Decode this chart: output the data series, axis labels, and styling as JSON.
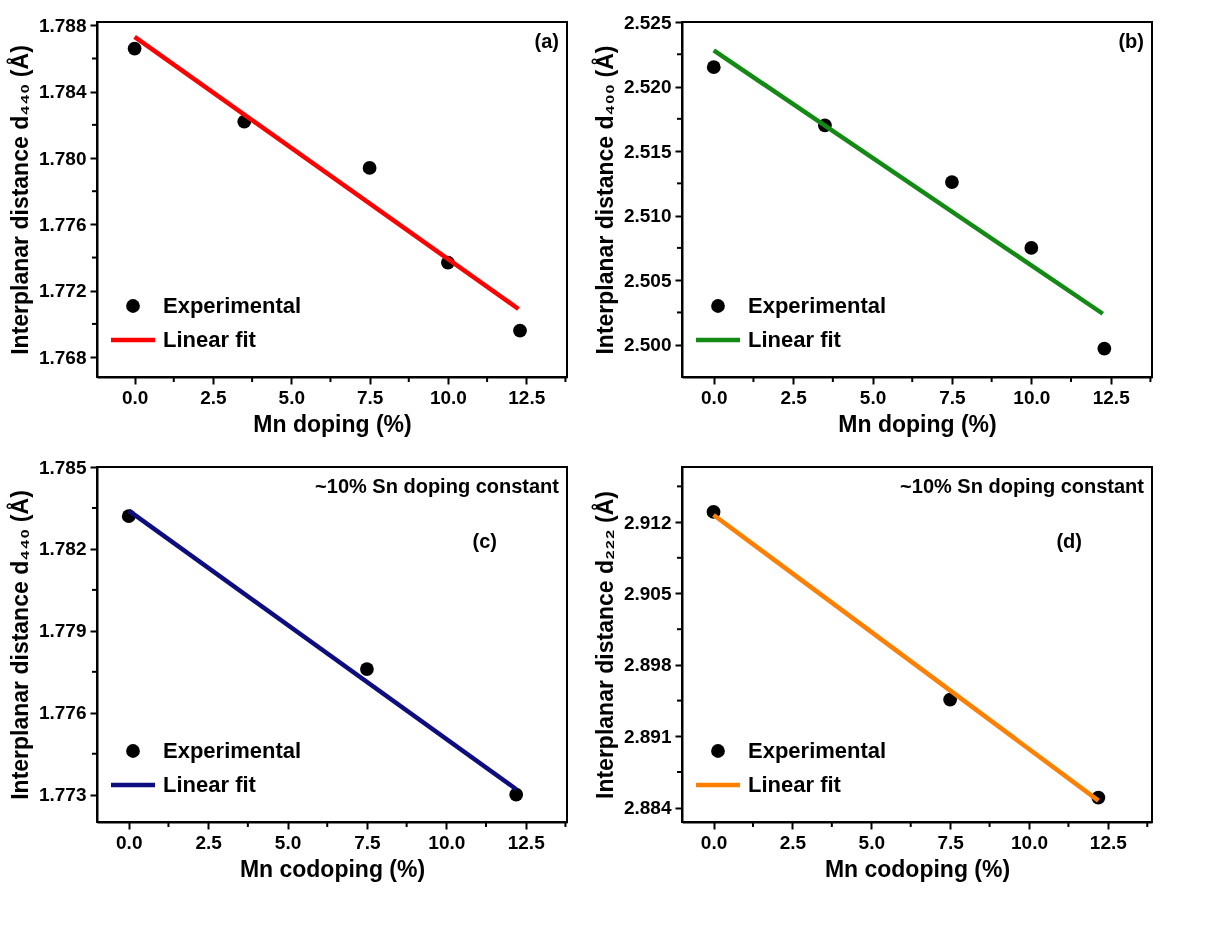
{
  "chart_data": [
    {
      "type": "scatter",
      "xlabel": "Mn doping (%)",
      "ylabel": "Interplanar distance d₄₄₀ (Å)",
      "annotations": [
        "(a)"
      ],
      "legend": "bottom left",
      "grid": false,
      "marker": "circle",
      "xlim": [
        -1.2,
        13.8
      ],
      "ylim": [
        1.7668,
        1.7882
      ],
      "xticks": [
        {
          "value": 0,
          "label": "0.0"
        },
        {
          "value": 1.25,
          "label": null
        },
        {
          "value": 2.5,
          "label": "2.5"
        },
        {
          "value": 3.75,
          "label": null
        },
        {
          "value": 5,
          "label": "5.0"
        },
        {
          "value": 6.25,
          "label": null
        },
        {
          "value": 7.5,
          "label": "7.5"
        },
        {
          "value": 8.75,
          "label": null
        },
        {
          "value": 10,
          "label": "10.0"
        },
        {
          "value": 11.25,
          "label": null
        },
        {
          "value": 12.5,
          "label": "12.5"
        },
        {
          "value": 13.75,
          "label": null
        }
      ],
      "yticks": [
        {
          "value": 1.768,
          "label": "1.768"
        },
        {
          "value": 1.77,
          "label": null
        },
        {
          "value": 1.772,
          "label": "1.772"
        },
        {
          "value": 1.774,
          "label": null
        },
        {
          "value": 1.776,
          "label": "1.776"
        },
        {
          "value": 1.778,
          "label": null
        },
        {
          "value": 1.78,
          "label": "1.780"
        },
        {
          "value": 1.782,
          "label": null
        },
        {
          "value": 1.784,
          "label": "1.784"
        },
        {
          "value": 1.786,
          "label": null
        },
        {
          "value": 1.788,
          "label": "1.788"
        }
      ],
      "series": [
        {
          "name": "Experimental",
          "type": "scatter",
          "color": "#000000",
          "x": [
            0,
            3.5,
            7.5,
            10,
            12.3
          ],
          "values": [
            1.7866,
            1.7822,
            1.7794,
            1.7737,
            1.7696
          ]
        },
        {
          "name": "Linear fit",
          "type": "line",
          "marker": "none",
          "color": "#ff0000",
          "x": [
            0,
            12.25
          ],
          "values": [
            1.7873,
            1.7709
          ]
        }
      ]
    },
    {
      "type": "scatter",
      "xlabel": "Mn doping (%)",
      "ylabel": "Interplanar distance d₄₀₀ (Å)",
      "annotations": [
        "(b)"
      ],
      "legend": "bottom left",
      "grid": false,
      "marker": "circle",
      "xlim": [
        -1.0,
        13.8
      ],
      "ylim": [
        2.4975,
        2.525
      ],
      "xticks": [
        {
          "value": 0,
          "label": "0.0"
        },
        {
          "value": 1.25,
          "label": null
        },
        {
          "value": 2.5,
          "label": "2.5"
        },
        {
          "value": 3.75,
          "label": null
        },
        {
          "value": 5,
          "label": "5.0"
        },
        {
          "value": 6.25,
          "label": null
        },
        {
          "value": 7.5,
          "label": "7.5"
        },
        {
          "value": 8.75,
          "label": null
        },
        {
          "value": 10,
          "label": "10.0"
        },
        {
          "value": 11.25,
          "label": null
        },
        {
          "value": 12.5,
          "label": "12.5"
        },
        {
          "value": 13.75,
          "label": null
        }
      ],
      "yticks": [
        {
          "value": 2.5,
          "label": "2.500"
        },
        {
          "value": 2.5025,
          "label": null
        },
        {
          "value": 2.505,
          "label": "2.505"
        },
        {
          "value": 2.5075,
          "label": null
        },
        {
          "value": 2.51,
          "label": "2.510"
        },
        {
          "value": 2.5125,
          "label": null
        },
        {
          "value": 2.515,
          "label": "2.515"
        },
        {
          "value": 2.5175,
          "label": null
        },
        {
          "value": 2.52,
          "label": "2.520"
        },
        {
          "value": 2.5225,
          "label": null
        },
        {
          "value": 2.525,
          "label": "2.525"
        }
      ],
      "series": [
        {
          "name": "Experimental",
          "type": "scatter",
          "color": "#000000",
          "x": [
            0,
            3.5,
            7.5,
            10,
            12.3
          ],
          "values": [
            2.5215,
            2.517,
            2.5126,
            2.5075,
            2.4997
          ]
        },
        {
          "name": "Linear fit",
          "type": "line",
          "marker": "none",
          "color": "#138a13",
          "x": [
            0,
            12.25
          ],
          "values": [
            2.5228,
            2.5024
          ]
        }
      ]
    },
    {
      "type": "scatter",
      "xlabel": "Mn codoping (%)",
      "ylabel": "Interplanar distance d₄₄₀ (Å)",
      "annotations": [
        "~10% Sn doping constant",
        "(c)"
      ],
      "legend": "bottom left",
      "grid": false,
      "marker": "circle",
      "xlim": [
        -1.0,
        13.8
      ],
      "ylim": [
        1.772,
        1.785
      ],
      "xticks": [
        {
          "value": 0,
          "label": "0.0"
        },
        {
          "value": 1.25,
          "label": null
        },
        {
          "value": 2.5,
          "label": "2.5"
        },
        {
          "value": 3.75,
          "label": null
        },
        {
          "value": 5,
          "label": "5.0"
        },
        {
          "value": 6.25,
          "label": null
        },
        {
          "value": 7.5,
          "label": "7.5"
        },
        {
          "value": 8.75,
          "label": null
        },
        {
          "value": 10,
          "label": "10.0"
        },
        {
          "value": 11.25,
          "label": null
        },
        {
          "value": 12.5,
          "label": "12.5"
        },
        {
          "value": 13.75,
          "label": null
        }
      ],
      "yticks": [
        {
          "value": 1.773,
          "label": "1.773"
        },
        {
          "value": 1.7745,
          "label": null
        },
        {
          "value": 1.776,
          "label": "1.776"
        },
        {
          "value": 1.7775,
          "label": null
        },
        {
          "value": 1.779,
          "label": "1.779"
        },
        {
          "value": 1.7805,
          "label": null
        },
        {
          "value": 1.782,
          "label": "1.782"
        },
        {
          "value": 1.7835,
          "label": null
        },
        {
          "value": 1.785,
          "label": "1.785"
        }
      ],
      "series": [
        {
          "name": "Experimental",
          "type": "scatter",
          "color": "#000000",
          "x": [
            0,
            7.5,
            12.2
          ],
          "values": [
            1.7832,
            1.7776,
            1.773
          ]
        },
        {
          "name": "Linear fit",
          "type": "line",
          "marker": "none",
          "color": "#0d0d80",
          "x": [
            0,
            12.2
          ],
          "values": [
            1.7834,
            1.7732
          ]
        }
      ]
    },
    {
      "type": "scatter",
      "xlabel": "Mn codoping (%)",
      "ylabel": "Interplanar distance d₂₂₂ (Å)",
      "annotations": [
        "~10% Sn doping constant",
        "(d)"
      ],
      "legend": "bottom left",
      "grid": false,
      "marker": "circle",
      "xlim": [
        -1.0,
        13.9
      ],
      "ylim": [
        2.8826,
        2.9174
      ],
      "xticks": [
        {
          "value": 0,
          "label": "0.0"
        },
        {
          "value": 1.25,
          "label": null
        },
        {
          "value": 2.5,
          "label": "2.5"
        },
        {
          "value": 3.75,
          "label": null
        },
        {
          "value": 5,
          "label": "5.0"
        },
        {
          "value": 6.25,
          "label": null
        },
        {
          "value": 7.5,
          "label": "7.5"
        },
        {
          "value": 8.75,
          "label": null
        },
        {
          "value": 10,
          "label": "10.0"
        },
        {
          "value": 11.25,
          "label": null
        },
        {
          "value": 12.5,
          "label": "12.5"
        },
        {
          "value": 13.75,
          "label": null
        }
      ],
      "yticks": [
        {
          "value": 2.884,
          "label": "2.884"
        },
        {
          "value": 2.8875,
          "label": null
        },
        {
          "value": 2.891,
          "label": "2.891"
        },
        {
          "value": 2.8945,
          "label": null
        },
        {
          "value": 2.898,
          "label": "2.898"
        },
        {
          "value": 2.9015,
          "label": null
        },
        {
          "value": 2.905,
          "label": "2.905"
        },
        {
          "value": 2.9085,
          "label": null
        },
        {
          "value": 2.912,
          "label": "2.912"
        },
        {
          "value": 2.9155,
          "label": null
        }
      ],
      "series": [
        {
          "name": "Experimental",
          "type": "scatter",
          "color": "#000000",
          "x": [
            0,
            7.5,
            12.2
          ],
          "values": [
            2.913,
            2.8946,
            2.885
          ]
        },
        {
          "name": "Linear fit",
          "type": "line",
          "marker": "none",
          "color": "#ff8000",
          "x": [
            0,
            12.2
          ],
          "values": [
            2.9127,
            2.8847
          ]
        }
      ]
    }
  ]
}
